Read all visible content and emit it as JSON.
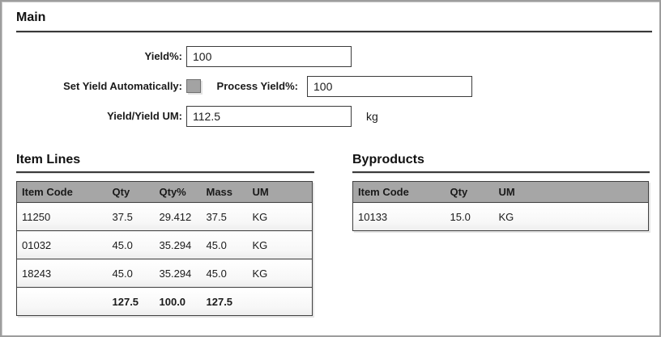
{
  "main": {
    "title": "Main",
    "yield": {
      "label": "Yield%:",
      "value": "100"
    },
    "set_yield_auto": {
      "label": "Set Yield Automatically:",
      "checked": false
    },
    "process_yield": {
      "label": "Process Yield%:",
      "value": "100"
    },
    "yield_um": {
      "label": "Yield/Yield UM:",
      "value": "112.5",
      "unit": "kg"
    }
  },
  "item_lines": {
    "title": "Item Lines",
    "columns": [
      "Item Code",
      "Qty",
      "Qty%",
      "Mass",
      "UM"
    ],
    "rows": [
      [
        "11250",
        "37.5",
        "29.412",
        "37.5",
        "KG"
      ],
      [
        "01032",
        "45.0",
        "35.294",
        "45.0",
        "KG"
      ],
      [
        "18243",
        "45.0",
        "35.294",
        "45.0",
        "KG"
      ]
    ],
    "totals": [
      "",
      "127.5",
      "100.0",
      "127.5",
      ""
    ]
  },
  "byproducts": {
    "title": "Byproducts",
    "columns": [
      "Item Code",
      "Qty",
      "UM"
    ],
    "rows": [
      [
        "10133",
        "15.0",
        "KG"
      ]
    ]
  },
  "colors": {
    "frame_border": "#9d9d9d",
    "border_dark": "#404040",
    "table_header_bg": "#a6a6a6",
    "checkbox_fill": "#a3a3a3",
    "text_color": "#1a1a1a"
  }
}
